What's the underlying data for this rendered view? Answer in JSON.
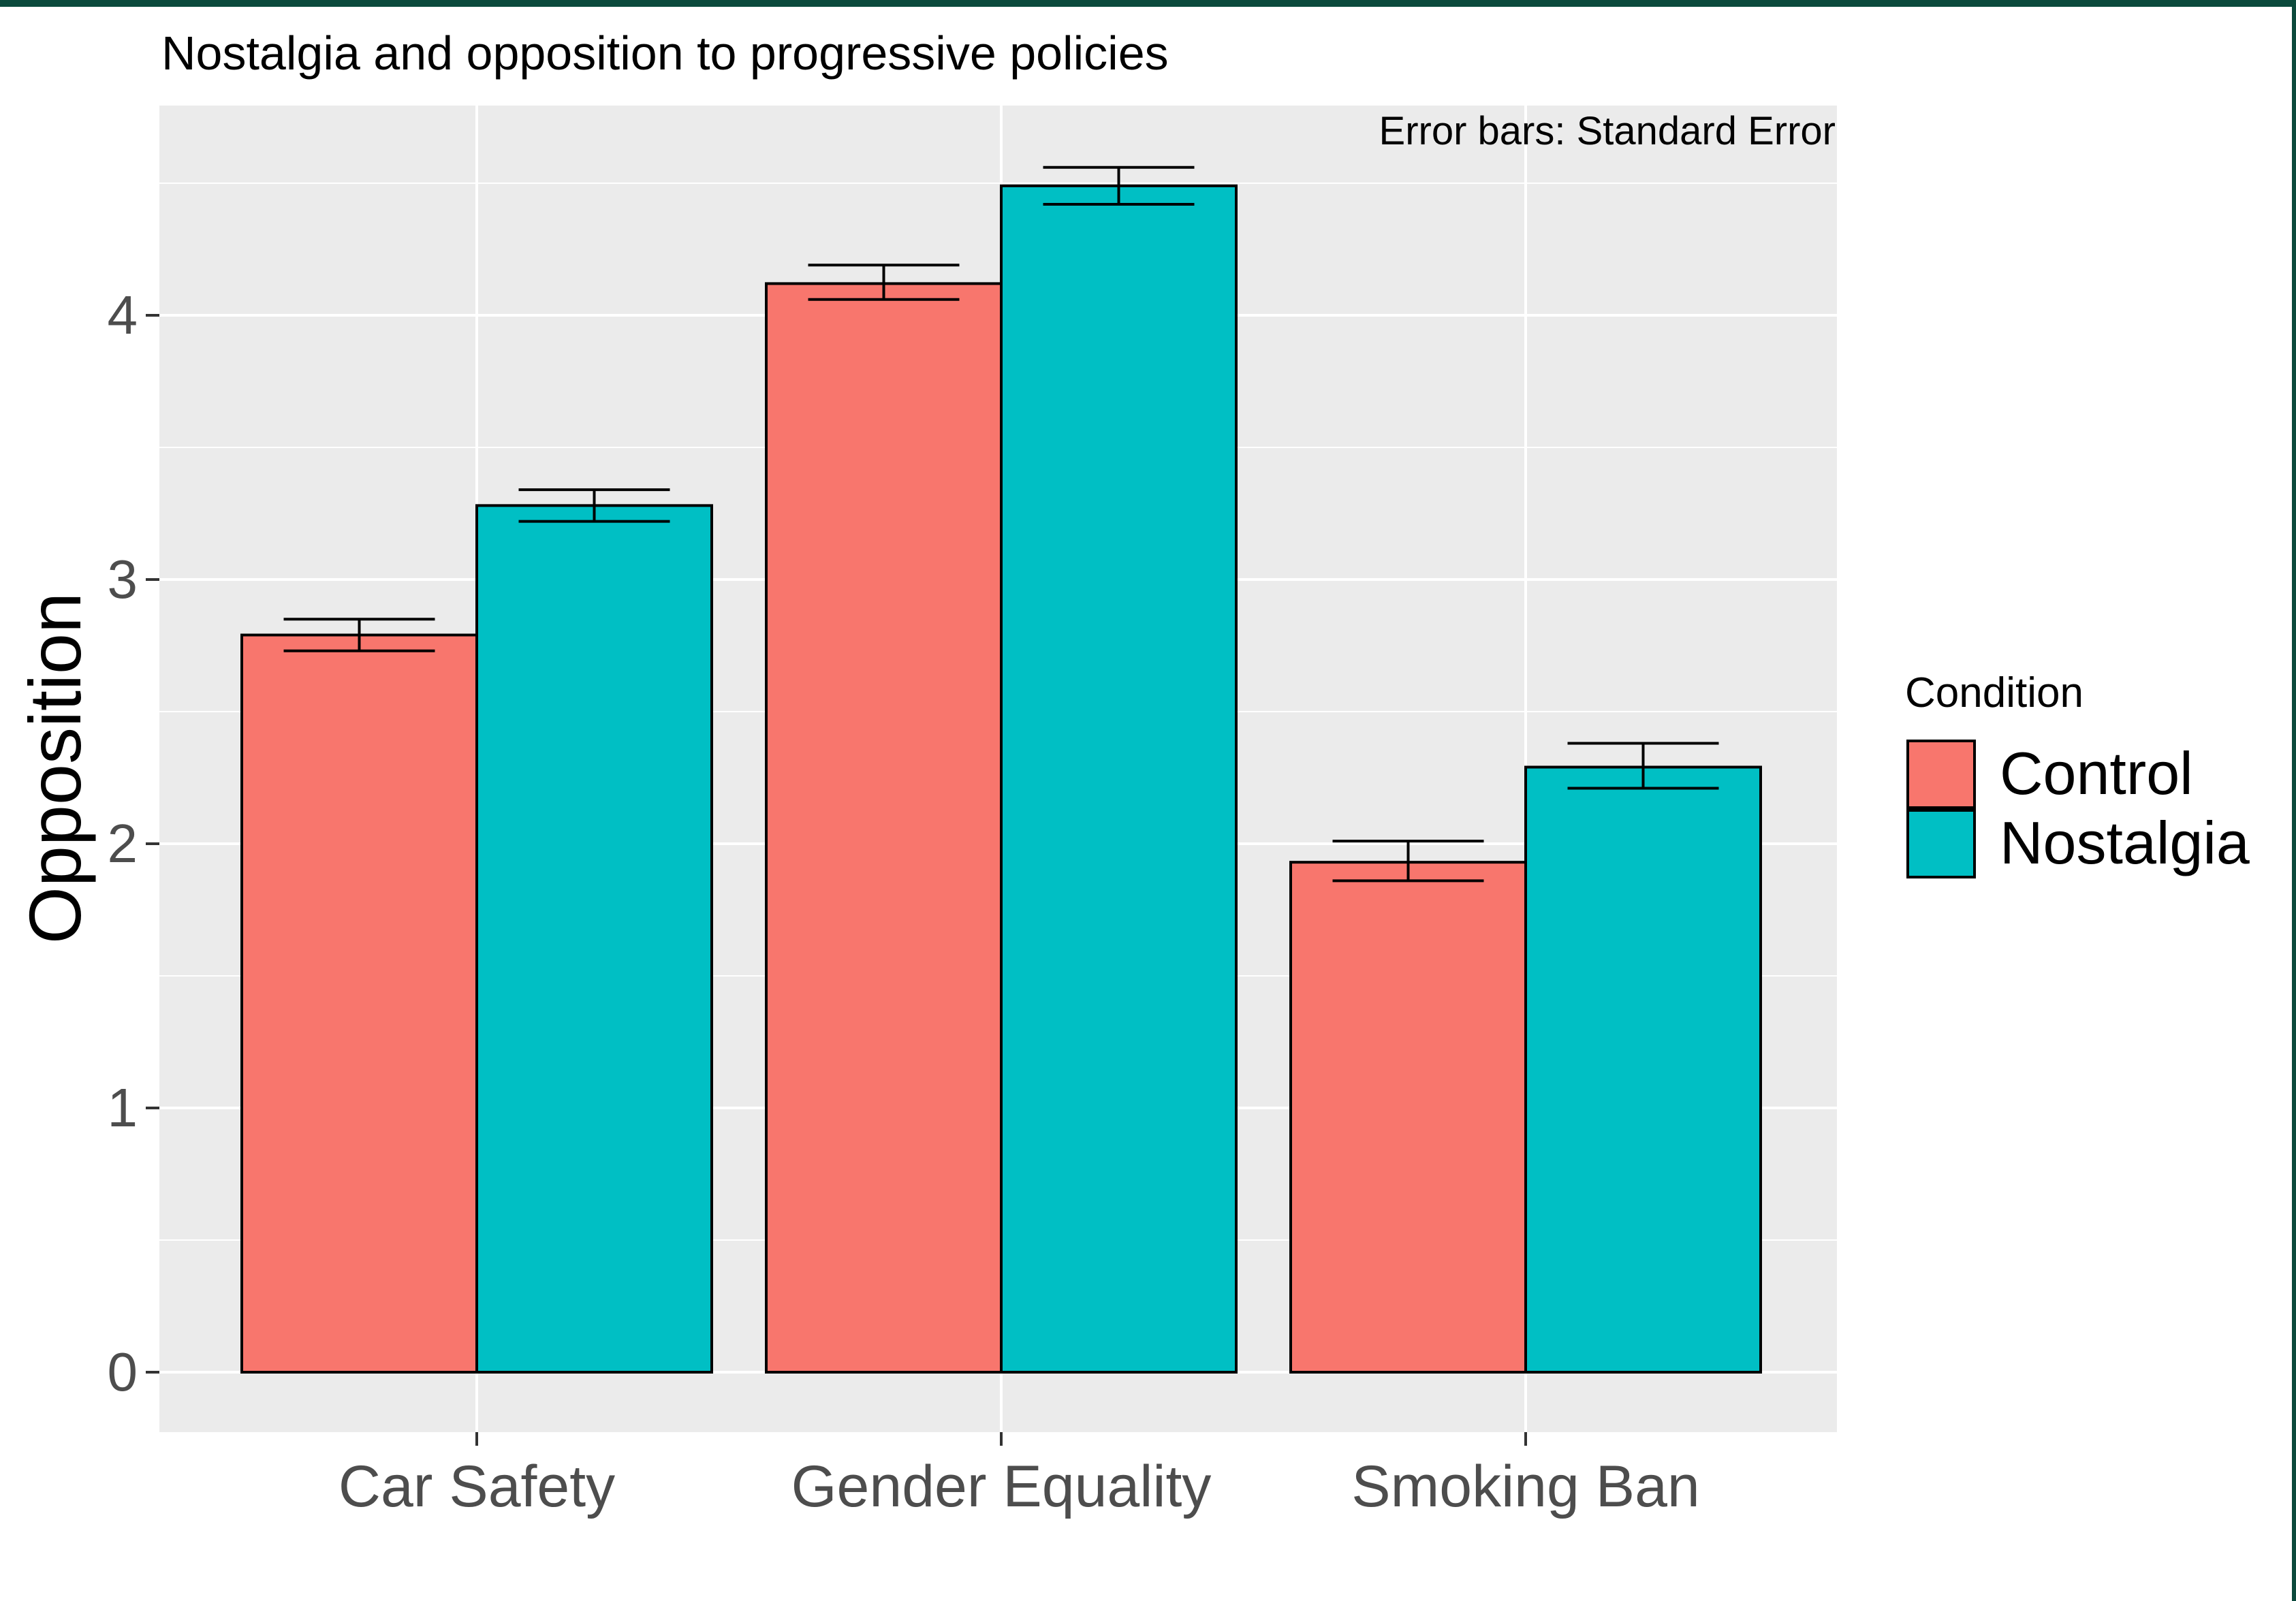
{
  "chart_data": {
    "type": "bar",
    "title": "Nostalgia and opposition to progressive policies",
    "annotation": "Error bars: Standard Error",
    "xlabel": "",
    "ylabel": "Opposition",
    "ylim": [
      -0.22,
      4.75
    ],
    "yticks": [
      0,
      1,
      2,
      3,
      4
    ],
    "categories": [
      "Car Safety",
      "Gender Equality",
      "Smoking Ban"
    ],
    "legend_title": "Condition",
    "legend_position": "right",
    "grid": true,
    "series": [
      {
        "name": "Control",
        "color": "#F8766D",
        "values": [
          2.79,
          4.12,
          1.93
        ],
        "error_low": [
          2.73,
          4.06,
          1.86
        ],
        "error_high": [
          2.85,
          4.19,
          2.01
        ]
      },
      {
        "name": "Nostalgia",
        "color": "#00BFC4",
        "values": [
          3.28,
          4.49,
          2.29
        ],
        "error_low": [
          3.22,
          4.42,
          2.21
        ],
        "error_high": [
          3.34,
          4.56,
          2.38
        ]
      }
    ],
    "colors": {
      "panel": "#EBEBEB",
      "grid": "#FFFFFF",
      "axis_text": "#4D4D4D",
      "frame": "#0B4A3C"
    }
  }
}
